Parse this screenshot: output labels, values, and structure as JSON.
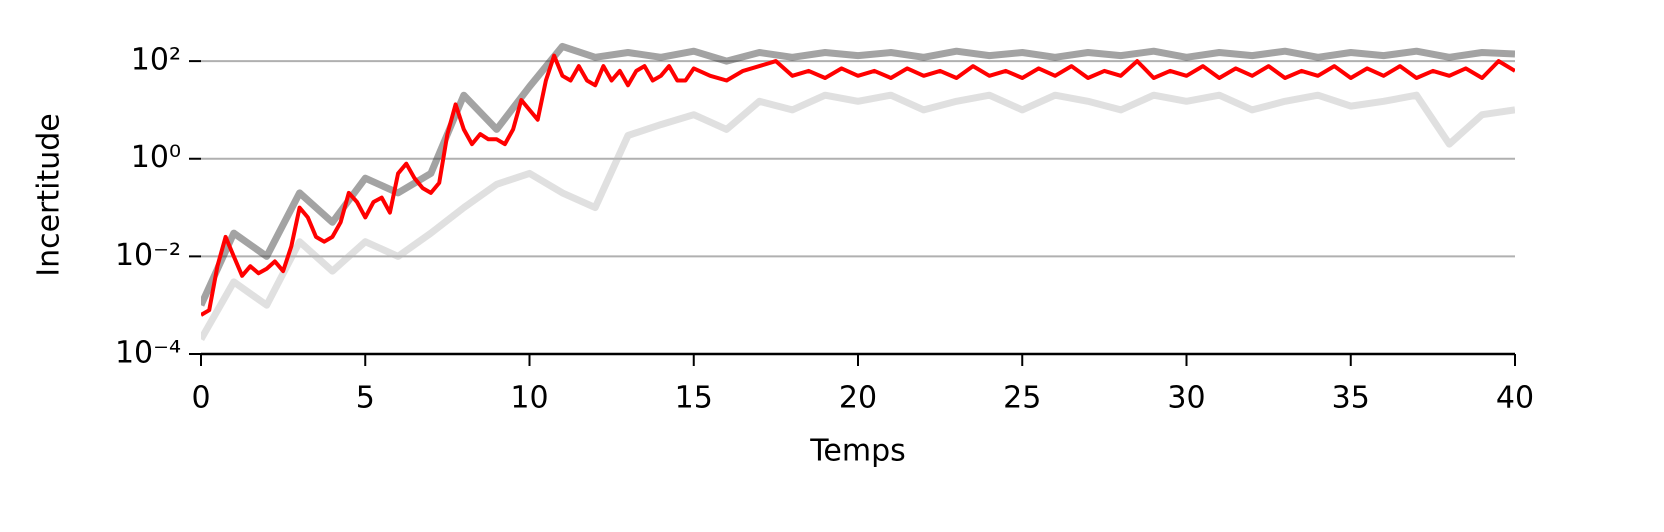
{
  "chart_data": {
    "type": "line",
    "xlabel": "Temps",
    "ylabel": "Incertitude",
    "log_y": true,
    "grid": "y",
    "xlim": [
      0,
      40
    ],
    "xticks": [
      0,
      5,
      10,
      15,
      20,
      25,
      30,
      35,
      40
    ],
    "ylim": [
      0.0001,
      500
    ],
    "yticks": [
      {
        "value": 0.0001,
        "label": "10⁻⁴"
      },
      {
        "value": 0.01,
        "label": "10⁻²"
      },
      {
        "value": 1,
        "label": "10⁰"
      },
      {
        "value": 100,
        "label": "10²"
      }
    ],
    "series": [
      {
        "color": "#bbbbbb",
        "x": [
          0,
          1,
          2,
          3,
          4,
          5,
          6,
          7,
          8,
          9,
          10,
          11,
          12,
          13,
          14,
          15,
          16,
          17,
          18,
          19,
          20,
          21,
          22,
          23,
          24,
          25,
          26,
          27,
          28,
          29,
          30,
          31,
          32,
          33,
          34,
          35,
          36,
          37,
          38,
          39,
          40
        ],
        "values": [
          0.0002,
          0.003,
          0.001,
          0.02,
          0.005,
          0.02,
          0.01,
          0.03,
          0.1,
          0.3,
          0.5,
          0.2,
          0.1,
          3,
          5,
          8,
          4,
          15,
          10,
          20,
          15,
          20,
          10,
          15,
          20,
          10,
          20,
          15,
          10,
          20,
          15,
          20,
          10,
          15,
          20,
          12,
          15,
          20,
          2,
          8,
          10
        ]
      },
      {
        "color": "#333333",
        "x": [
          0,
          1,
          2,
          3,
          4,
          5,
          6,
          7,
          8,
          9,
          10,
          11,
          12,
          13,
          14,
          15,
          16,
          17,
          18,
          19,
          20,
          21,
          22,
          23,
          24,
          25,
          26,
          27,
          28,
          29,
          30,
          31,
          32,
          33,
          34,
          35,
          36,
          37,
          38,
          39,
          40
        ],
        "values": [
          0.001,
          0.03,
          0.01,
          0.2,
          0.05,
          0.4,
          0.2,
          0.5,
          20,
          4,
          30,
          200,
          120,
          150,
          120,
          160,
          100,
          150,
          120,
          150,
          130,
          150,
          120,
          160,
          130,
          150,
          120,
          150,
          130,
          160,
          120,
          150,
          130,
          160,
          120,
          150,
          130,
          160,
          120,
          150,
          140
        ]
      },
      {
        "color": "#ff0000",
        "x": [
          0,
          0.25,
          0.5,
          0.75,
          1,
          1.25,
          1.5,
          1.75,
          2,
          2.25,
          2.5,
          2.75,
          3,
          3.25,
          3.5,
          3.75,
          4,
          4.25,
          4.5,
          4.75,
          5,
          5.25,
          5.5,
          5.75,
          6,
          6.25,
          6.5,
          6.75,
          7,
          7.25,
          7.5,
          7.75,
          8,
          8.25,
          8.5,
          8.75,
          9,
          9.25,
          9.5,
          9.75,
          10,
          10.25,
          10.5,
          10.75,
          11,
          11.25,
          11.5,
          11.75,
          12,
          12.25,
          12.5,
          12.75,
          13,
          13.25,
          13.5,
          13.75,
          14,
          14.25,
          14.5,
          14.75,
          15,
          15.5,
          16,
          16.5,
          17,
          17.5,
          18,
          18.5,
          19,
          19.5,
          20,
          20.5,
          21,
          21.5,
          22,
          22.5,
          23,
          23.5,
          24,
          24.5,
          25,
          25.5,
          26,
          26.5,
          27,
          27.5,
          28,
          28.5,
          29,
          29.5,
          30,
          30.5,
          31,
          31.5,
          32,
          32.5,
          33,
          33.5,
          34,
          34.5,
          35,
          35.5,
          36,
          36.5,
          37,
          37.5,
          38,
          38.5,
          39,
          39.5,
          40
        ],
        "values": [
          0.00063,
          0.00079,
          0.0063,
          0.025,
          0.01,
          0.004,
          0.0063,
          0.0045,
          0.0056,
          0.0079,
          0.005,
          0.016,
          0.1,
          0.063,
          0.025,
          0.02,
          0.025,
          0.05,
          0.2,
          0.13,
          0.063,
          0.13,
          0.16,
          0.079,
          0.5,
          0.79,
          0.4,
          0.25,
          0.2,
          0.32,
          3.2,
          13,
          4,
          2,
          3.2,
          2.5,
          2.5,
          2,
          4,
          16,
          10,
          6.3,
          40,
          130,
          50,
          40,
          79,
          40,
          32,
          79,
          40,
          63,
          32,
          63,
          79,
          40,
          50,
          79,
          40,
          40,
          71,
          50,
          40,
          63,
          79,
          100,
          50,
          63,
          45,
          71,
          50,
          63,
          45,
          71,
          50,
          63,
          45,
          79,
          50,
          63,
          45,
          71,
          50,
          79,
          45,
          63,
          50,
          100,
          45,
          63,
          50,
          79,
          45,
          71,
          50,
          79,
          45,
          63,
          50,
          79,
          45,
          71,
          50,
          79,
          45,
          63,
          50,
          71,
          45,
          100,
          63
        ]
      }
    ]
  }
}
